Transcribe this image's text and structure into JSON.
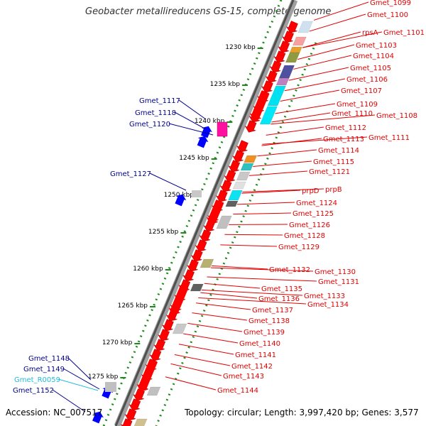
{
  "title": "Geobacter metallireducens GS-15, complete genome",
  "footer": {
    "accession": "Accession: NC_007517",
    "topology": "Topology: circular; Length: 3,997,420 bp; Genes: 3,577"
  },
  "colors": {
    "forward_label": "#e00000",
    "reverse_label": "#00008b",
    "rna_label": "#22bbdd",
    "gene_red": "#ff0000",
    "gene_blue": "#0000ff",
    "backbone": "#808080",
    "tick_green": "#1a8a1a"
  },
  "scale": {
    "ticks": [
      {
        "label": "1230 kbp"
      },
      {
        "label": "1235 kbp"
      },
      {
        "label": "1240 kbp"
      },
      {
        "label": "1245 kbp"
      },
      {
        "label": "1250 kbp"
      },
      {
        "label": "1255 kbp"
      },
      {
        "label": "1260 kbp"
      },
      {
        "label": "1265 kbp"
      },
      {
        "label": "1270 kbp"
      },
      {
        "label": "1275 kbp"
      }
    ]
  },
  "labels_right": [
    "Gmet_1099",
    "Gmet_1100",
    "rpsA",
    "Gmet_1101",
    "Gmet_1103",
    "Gmet_1104",
    "Gmet_1105",
    "Gmet_1106",
    "Gmet_1107",
    "Gmet_1109",
    "Gmet_1110",
    "Gmet_1108",
    "Gmet_1112",
    "Gmet_1113",
    "Gmet_1111",
    "Gmet_1114",
    "Gmet_1115",
    "Gmet_1121",
    "prpD",
    "prpB",
    "Gmet_1124",
    "Gmet_1125",
    "Gmet_1126",
    "Gmet_1128",
    "Gmet_1129",
    "Gmet_1132",
    "Gmet_1130",
    "Gmet_1131",
    "Gmet_1135",
    "Gmet_1133",
    "Gmet_1136",
    "Gmet_1134",
    "Gmet_1137",
    "Gmet_1138",
    "Gmet_1139",
    "Gmet_1140",
    "Gmet_1141",
    "Gmet_1142",
    "Gmet_1143",
    "Gmet_1144"
  ],
  "labels_left": [
    {
      "name": "Gmet_1117",
      "kind": "gene"
    },
    {
      "name": "Gmet_1118",
      "kind": "gene"
    },
    {
      "name": "Gmet_1120",
      "kind": "gene"
    },
    {
      "name": "Gmet_1127",
      "kind": "gene"
    },
    {
      "name": "Gmet_1148",
      "kind": "gene"
    },
    {
      "name": "Gmet_1149",
      "kind": "gene"
    },
    {
      "name": "Gmet_R0059",
      "kind": "rna"
    },
    {
      "name": "Gmet_1152",
      "kind": "gene"
    }
  ]
}
